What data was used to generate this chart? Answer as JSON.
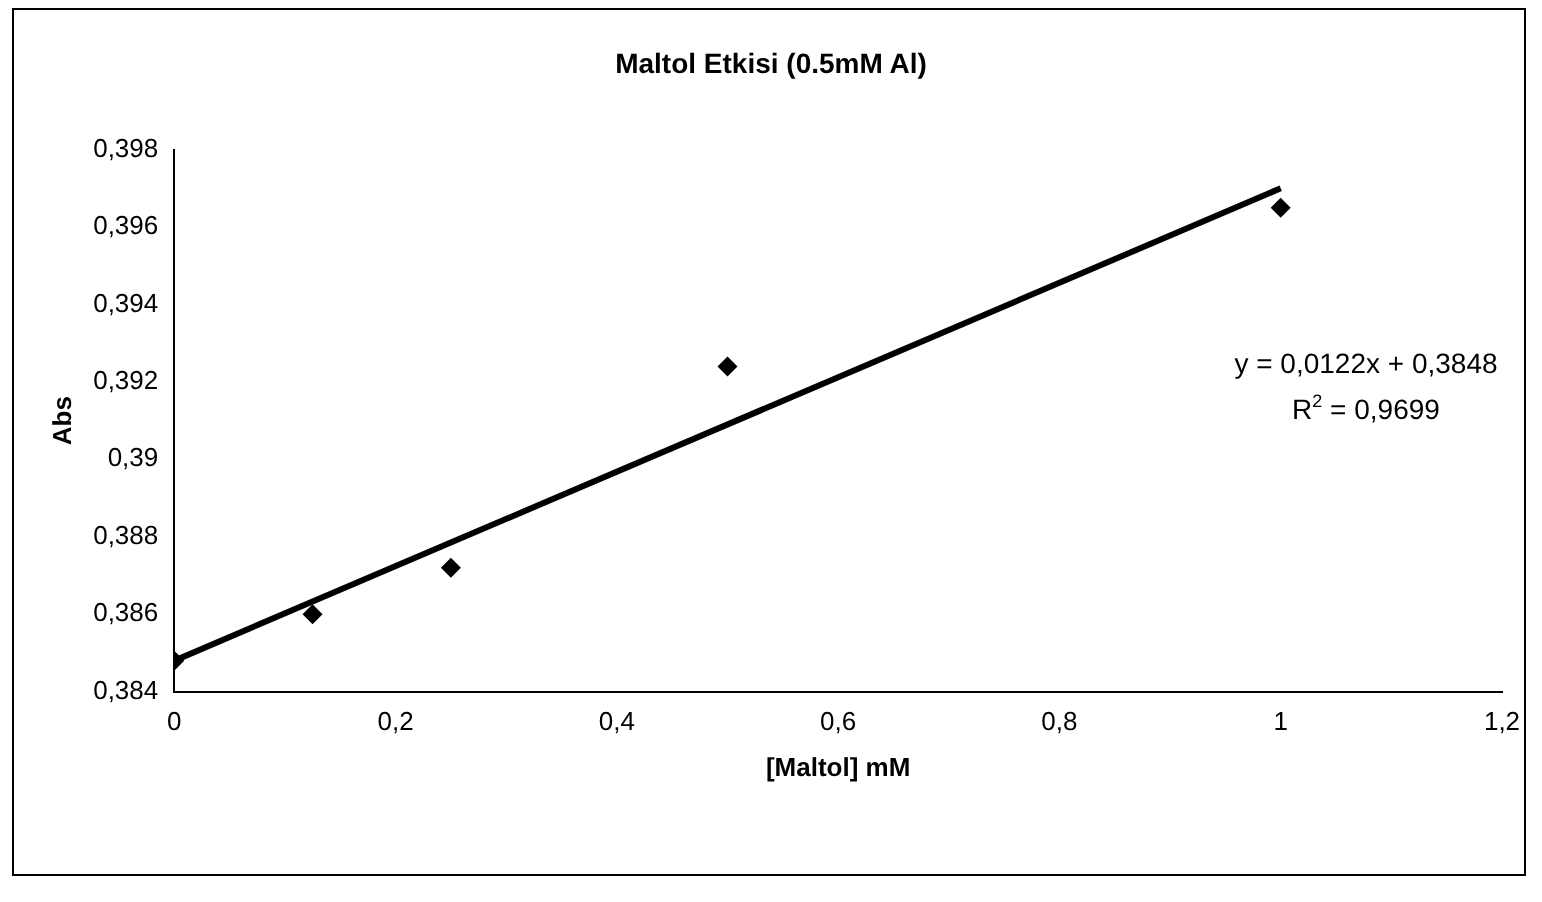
{
  "chart_data": {
    "type": "scatter",
    "title": "Maltol Etkisi (0.5mM Al)",
    "xlabel": "[Maltol] mM",
    "ylabel": "Abs",
    "marker": "diamond",
    "grid": false,
    "legend": false,
    "xlim": [
      0,
      1.2
    ],
    "ylim": [
      0.384,
      0.398
    ],
    "xticks": [
      0,
      {
        "value": 0.2,
        "label": "0,2"
      },
      {
        "value": 0.4,
        "label": "0,4"
      },
      {
        "value": 0.6,
        "label": "0,6"
      },
      {
        "value": 0.8,
        "label": "0,8"
      },
      1,
      {
        "value": 1.2,
        "label": "1,2"
      }
    ],
    "yticks": [
      {
        "value": 0.384,
        "label": "0,384"
      },
      {
        "value": 0.386,
        "label": "0,386"
      },
      {
        "value": 0.388,
        "label": "0,388"
      },
      {
        "value": 0.39,
        "label": "0,39"
      },
      {
        "value": 0.392,
        "label": "0,392"
      },
      {
        "value": 0.394,
        "label": "0,394"
      },
      {
        "value": 0.396,
        "label": "0,396"
      },
      {
        "value": 0.398,
        "label": "0,398"
      }
    ],
    "series": [
      {
        "color": "#000000",
        "x": [
          0,
          0.125,
          0.25,
          0.5,
          1
        ],
        "values": [
          0.3848,
          0.386,
          0.3872,
          0.3924,
          0.3965
        ]
      },
      {
        "type": "line",
        "marker": "none",
        "color": "#000000",
        "x": [
          0,
          1
        ],
        "values": [
          0.3848,
          0.397
        ]
      }
    ],
    "annotations": [
      "y = 0,0122x + 0,3848",
      "R$^{2}$ = 0,9699"
    ]
  }
}
